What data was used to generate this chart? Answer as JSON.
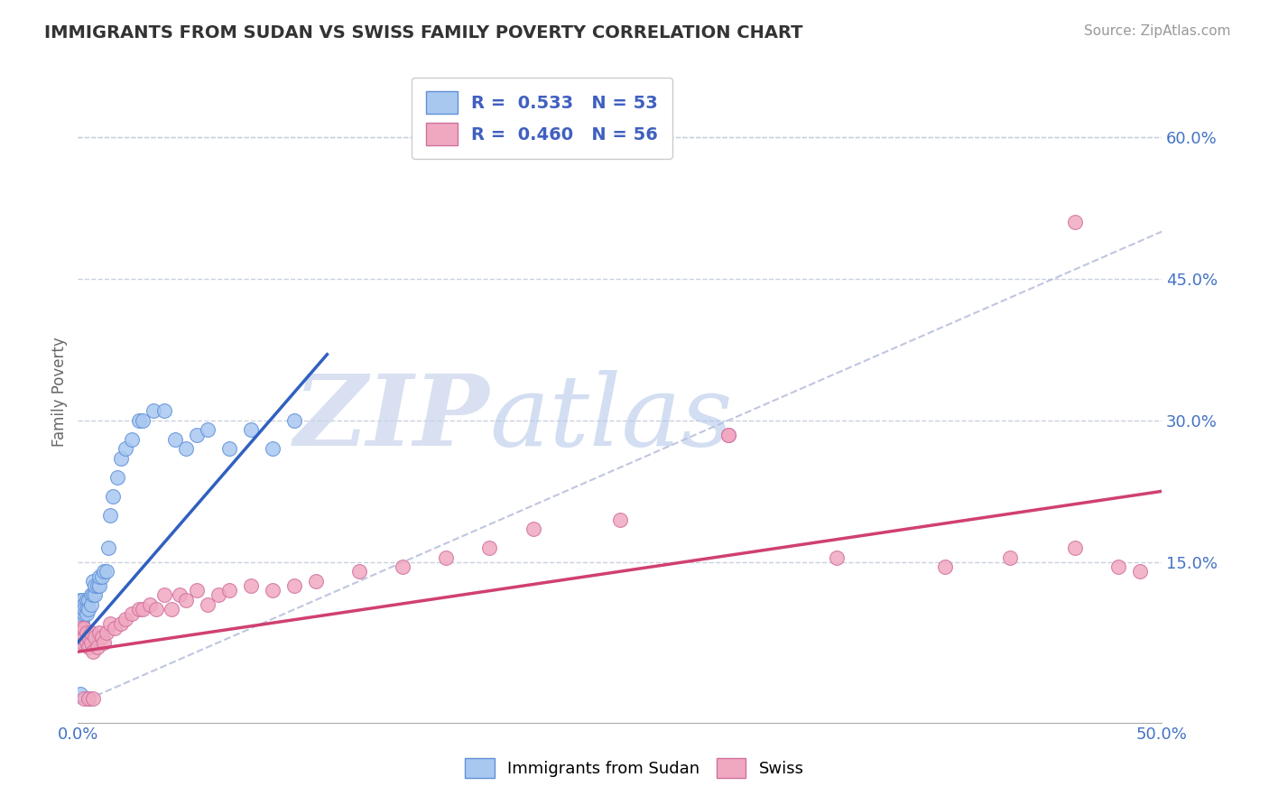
{
  "title": "IMMIGRANTS FROM SUDAN VS SWISS FAMILY POVERTY CORRELATION CHART",
  "source": "Source: ZipAtlas.com",
  "ylabel": "Family Poverty",
  "xlim": [
    0,
    0.5
  ],
  "ylim": [
    -0.02,
    0.68
  ],
  "xtick_labels": [
    "0.0%",
    "",
    "",
    "",
    "",
    "50.0%"
  ],
  "xtick_vals": [
    0.0,
    0.1,
    0.2,
    0.3,
    0.4,
    0.5
  ],
  "ytick_labels": [
    "15.0%",
    "30.0%",
    "45.0%",
    "60.0%"
  ],
  "ytick_vals": [
    0.15,
    0.3,
    0.45,
    0.6
  ],
  "blue_color": "#A8C8F0",
  "pink_color": "#F0A8C0",
  "trendline_blue": "#3060C0",
  "trendline_pink": "#D04070",
  "diag_color": "#B0B8D8",
  "sudan_trend_x": [
    0.0,
    0.115
  ],
  "sudan_trend_y": [
    0.065,
    0.37
  ],
  "swiss_trend_x": [
    0.0,
    0.5
  ],
  "swiss_trend_y": [
    0.055,
    0.225
  ],
  "sudan_x": [
    0.001,
    0.001,
    0.001,
    0.001,
    0.001,
    0.002,
    0.002,
    0.002,
    0.002,
    0.002,
    0.003,
    0.003,
    0.003,
    0.004,
    0.004,
    0.004,
    0.005,
    0.005,
    0.006,
    0.006,
    0.007,
    0.007,
    0.008,
    0.008,
    0.009,
    0.01,
    0.01,
    0.011,
    0.012,
    0.013,
    0.014,
    0.015,
    0.016,
    0.018,
    0.02,
    0.022,
    0.025,
    0.028,
    0.03,
    0.035,
    0.04,
    0.045,
    0.05,
    0.055,
    0.06,
    0.07,
    0.08,
    0.09,
    0.1,
    0.005,
    0.002,
    0.003,
    0.001
  ],
  "sudan_y": [
    0.09,
    0.1,
    0.11,
    0.085,
    0.095,
    0.1,
    0.11,
    0.095,
    0.085,
    0.09,
    0.105,
    0.095,
    0.1,
    0.1,
    0.11,
    0.095,
    0.11,
    0.1,
    0.115,
    0.105,
    0.13,
    0.115,
    0.115,
    0.125,
    0.125,
    0.125,
    0.135,
    0.135,
    0.14,
    0.14,
    0.165,
    0.2,
    0.22,
    0.24,
    0.26,
    0.27,
    0.28,
    0.3,
    0.3,
    0.31,
    0.31,
    0.28,
    0.27,
    0.285,
    0.29,
    0.27,
    0.29,
    0.27,
    0.3,
    0.005,
    0.075,
    0.065,
    0.01
  ],
  "swiss_x": [
    0.001,
    0.001,
    0.002,
    0.002,
    0.003,
    0.003,
    0.004,
    0.004,
    0.005,
    0.005,
    0.006,
    0.006,
    0.007,
    0.008,
    0.009,
    0.01,
    0.011,
    0.012,
    0.013,
    0.015,
    0.017,
    0.02,
    0.022,
    0.025,
    0.028,
    0.03,
    0.033,
    0.036,
    0.04,
    0.043,
    0.047,
    0.05,
    0.055,
    0.06,
    0.065,
    0.07,
    0.08,
    0.09,
    0.1,
    0.11,
    0.13,
    0.15,
    0.17,
    0.19,
    0.21,
    0.25,
    0.3,
    0.35,
    0.4,
    0.43,
    0.46,
    0.48,
    0.49,
    0.003,
    0.005,
    0.007
  ],
  "swiss_y": [
    0.07,
    0.08,
    0.065,
    0.075,
    0.07,
    0.08,
    0.065,
    0.075,
    0.06,
    0.07,
    0.065,
    0.075,
    0.055,
    0.07,
    0.06,
    0.075,
    0.07,
    0.065,
    0.075,
    0.085,
    0.08,
    0.085,
    0.09,
    0.095,
    0.1,
    0.1,
    0.105,
    0.1,
    0.115,
    0.1,
    0.115,
    0.11,
    0.12,
    0.105,
    0.115,
    0.12,
    0.125,
    0.12,
    0.125,
    0.13,
    0.14,
    0.145,
    0.155,
    0.165,
    0.185,
    0.195,
    0.285,
    0.155,
    0.145,
    0.155,
    0.165,
    0.145,
    0.14,
    0.005,
    0.005,
    0.005
  ],
  "swiss_special": [
    [
      0.3,
      0.285
    ],
    [
      0.48,
      0.51
    ]
  ]
}
